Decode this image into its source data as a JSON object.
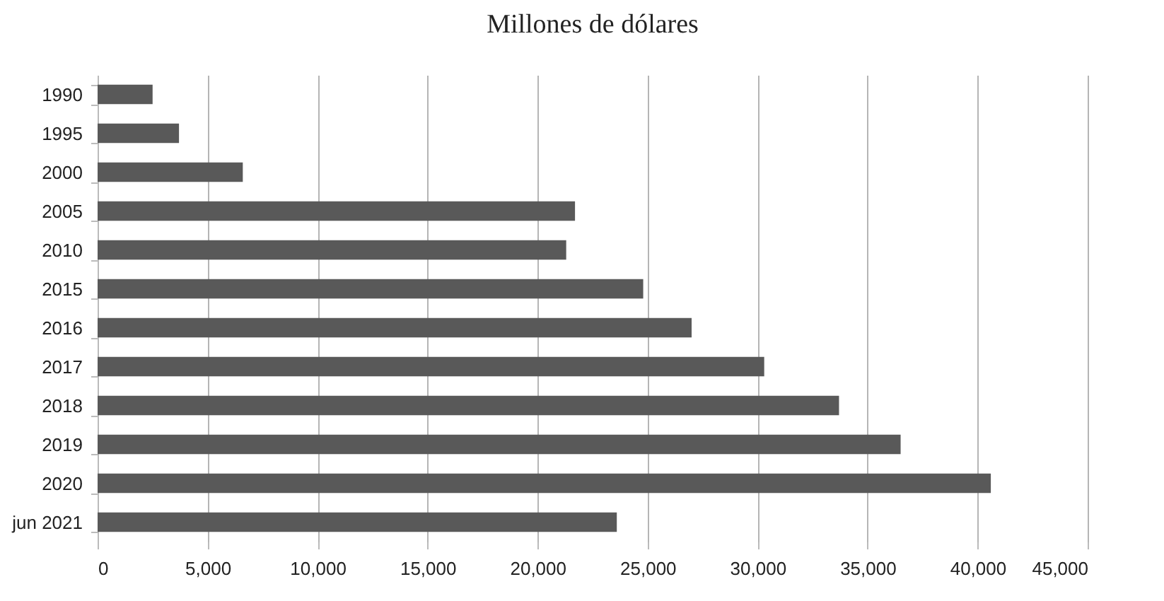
{
  "chart_data": {
    "type": "bar",
    "orientation": "horizontal",
    "title": "Millones de dólares",
    "categories": [
      "1990",
      "1995",
      "2000",
      "2005",
      "2010",
      "2015",
      "2016",
      "2017",
      "2018",
      "2019",
      "2020",
      "jun 2021"
    ],
    "values": [
      2500,
      3700,
      6600,
      21700,
      21300,
      24800,
      27000,
      30300,
      33700,
      36500,
      40600,
      23600
    ],
    "color": "#595959",
    "xlim": [
      0,
      45000
    ],
    "xticks": [
      {
        "value": 0,
        "label": "0"
      },
      {
        "value": 5000,
        "label": "5,000"
      },
      {
        "value": 10000,
        "label": "10,000"
      },
      {
        "value": 15000,
        "label": "15,000"
      },
      {
        "value": 20000,
        "label": "20,000"
      },
      {
        "value": 25000,
        "label": "25,000"
      },
      {
        "value": 30000,
        "label": "30,000"
      },
      {
        "value": 35000,
        "label": "35,000"
      },
      {
        "value": 40000,
        "label": "40,000"
      },
      {
        "value": 45000,
        "label": "45,000"
      }
    ],
    "grid": "x"
  }
}
